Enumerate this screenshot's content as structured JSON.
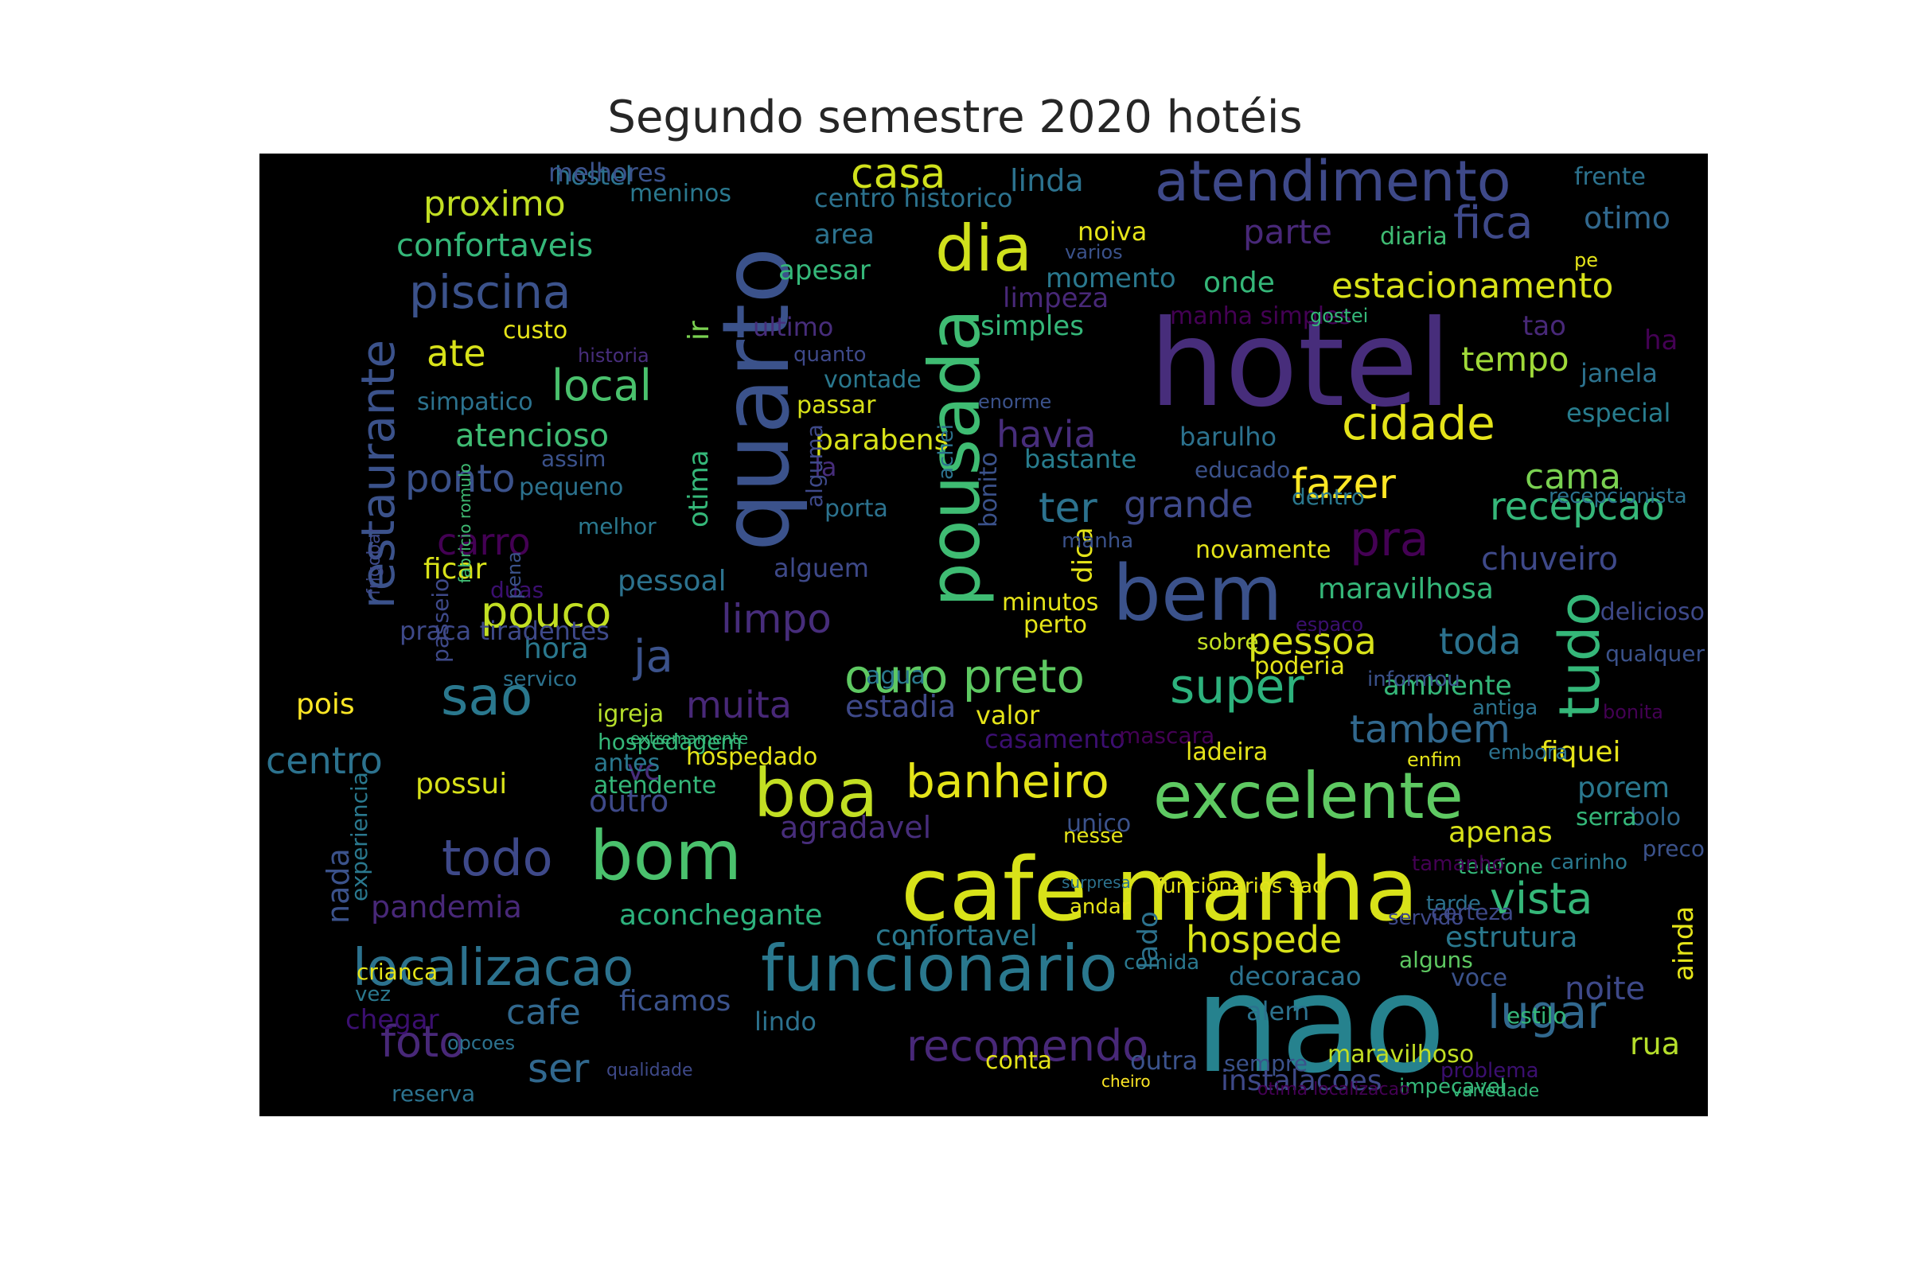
{
  "title": "Segundo semestre 2020 hotéis",
  "colormap": "viridis",
  "background_color": "#000000",
  "words": [
    {
      "text": "nao",
      "color": "#26828e"
    },
    {
      "text": "hotel",
      "color": "#472d7b"
    },
    {
      "text": "cafe manha",
      "color": "#d8e219"
    },
    {
      "text": "quarto",
      "color": "#3b528b"
    },
    {
      "text": "excelente",
      "color": "#5ec962"
    },
    {
      "text": "bom",
      "color": "#4ac16d"
    },
    {
      "text": "bem",
      "color": "#3b528b"
    },
    {
      "text": "boa",
      "color": "#c2df23"
    },
    {
      "text": "funcionario",
      "color": "#2a788e"
    },
    {
      "text": "pousada",
      "color": "#3fbc73"
    },
    {
      "text": "dia",
      "color": "#d0e11c"
    },
    {
      "text": "atendimento",
      "color": "#3e4989"
    },
    {
      "text": "localizacao",
      "color": "#2c728e"
    },
    {
      "text": "banheiro",
      "color": "#e5e419"
    },
    {
      "text": "restaurante",
      "color": "#3b528b"
    },
    {
      "text": "ouro preto",
      "color": "#5ec962"
    },
    {
      "text": "super",
      "color": "#2db27d"
    },
    {
      "text": "tudo",
      "color": "#35b779"
    },
    {
      "text": "cidade",
      "color": "#e5e419"
    },
    {
      "text": "piscina",
      "color": "#3b528b"
    },
    {
      "text": "todo",
      "color": "#3e4989"
    },
    {
      "text": "sao",
      "color": "#2a788e"
    },
    {
      "text": "recomendo",
      "color": "#482878"
    },
    {
      "text": "lugar",
      "color": "#31688e"
    },
    {
      "text": "vista",
      "color": "#35b779"
    },
    {
      "text": "pra",
      "color": "#440154"
    },
    {
      "text": "fica",
      "color": "#3e4989"
    },
    {
      "text": "pouco",
      "color": "#c2df23"
    },
    {
      "text": "casa",
      "color": "#d0e11c"
    },
    {
      "text": "ja",
      "color": "#3b528b"
    },
    {
      "text": "muita",
      "color": "#482878"
    },
    {
      "text": "limpo",
      "color": "#472d7b"
    },
    {
      "text": "local",
      "color": "#4ac16d"
    },
    {
      "text": "ter",
      "color": "#2c728e"
    },
    {
      "text": "grande",
      "color": "#3e4989"
    },
    {
      "text": "fazer",
      "color": "#fde725"
    },
    {
      "text": "recepcao",
      "color": "#35b779"
    },
    {
      "text": "estacionamento",
      "color": "#d8e219"
    },
    {
      "text": "foto",
      "color": "#482878"
    },
    {
      "text": "ser",
      "color": "#31688e"
    },
    {
      "text": "cafe",
      "color": "#31688e"
    },
    {
      "text": "hospede",
      "color": "#d8e219"
    },
    {
      "text": "havia",
      "color": "#472d7b"
    },
    {
      "text": "ponto",
      "color": "#3b528b"
    },
    {
      "text": "carro",
      "color": "#440154"
    },
    {
      "text": "pessoa",
      "color": "#d8e219"
    },
    {
      "text": "toda",
      "color": "#2c728e"
    },
    {
      "text": "centro",
      "color": "#2c728e"
    },
    {
      "text": "tambem",
      "color": "#31688e"
    },
    {
      "text": "cama",
      "color": "#7ad151"
    },
    {
      "text": "parte",
      "color": "#482878"
    },
    {
      "text": "proximo",
      "color": "#c2df23"
    },
    {
      "text": "confortaveis",
      "color": "#35b779"
    },
    {
      "text": "ate",
      "color": "#d8e219"
    },
    {
      "text": "atencioso",
      "color": "#3fbc73"
    },
    {
      "text": "otimo",
      "color": "#31688e"
    },
    {
      "text": "tempo",
      "color": "#a0da39"
    },
    {
      "text": "chuveiro",
      "color": "#3e4989"
    },
    {
      "text": "estrutura",
      "color": "#2a788e"
    },
    {
      "text": "noite",
      "color": "#3e4989"
    },
    {
      "text": "rua",
      "color": "#b5de2b"
    },
    {
      "text": "nada",
      "color": "#3b528b"
    },
    {
      "text": "pandemia",
      "color": "#482878"
    },
    {
      "text": "estadia",
      "color": "#3e4989"
    },
    {
      "text": "agradavel",
      "color": "#472d7b"
    },
    {
      "text": "outro",
      "color": "#3e4989"
    },
    {
      "text": "ficamos",
      "color": "#3b528b"
    },
    {
      "text": "aconchegante",
      "color": "#2db27d"
    },
    {
      "text": "confortavel",
      "color": "#2a788e"
    },
    {
      "text": "hora",
      "color": "#2a788e"
    },
    {
      "text": "maravilhosa",
      "color": "#35b779"
    },
    {
      "text": "linda",
      "color": "#2c728e"
    },
    {
      "text": "onde",
      "color": "#35b779"
    },
    {
      "text": "apenas",
      "color": "#d8e219"
    },
    {
      "text": "ambiente",
      "color": "#35b779"
    },
    {
      "text": "possui",
      "color": "#d8e219"
    },
    {
      "text": "pois",
      "color": "#fde725"
    },
    {
      "text": "ficar",
      "color": "#d8e219"
    },
    {
      "text": "fiquei",
      "color": "#e5e419"
    },
    {
      "text": "porem",
      "color": "#2a788e"
    },
    {
      "text": "ainda",
      "color": "#e5e419"
    },
    {
      "text": "lado",
      "color": "#2c728e"
    },
    {
      "text": "dica",
      "color": "#e5e419"
    },
    {
      "text": "otima",
      "color": "#35b779"
    },
    {
      "text": "ir",
      "color": "#7ad151"
    },
    {
      "text": "area",
      "color": "#2c728e"
    },
    {
      "text": "apesar",
      "color": "#35b779"
    },
    {
      "text": "simples",
      "color": "#35b779"
    },
    {
      "text": "momento",
      "color": "#2a788e"
    },
    {
      "text": "barulho",
      "color": "#2c728e"
    },
    {
      "text": "bastante",
      "color": "#287d8e"
    },
    {
      "text": "limpeza",
      "color": "#482878"
    },
    {
      "text": "tao",
      "color": "#482878"
    },
    {
      "text": "ha",
      "color": "#440154"
    },
    {
      "text": "janela",
      "color": "#2c728e"
    },
    {
      "text": "especial",
      "color": "#287d8e"
    },
    {
      "text": "casamento",
      "color": "#3b0f70"
    },
    {
      "text": "centro historico",
      "color": "#2c728e"
    },
    {
      "text": "hostel",
      "color": "#2c728e"
    },
    {
      "text": "melhores",
      "color": "#3b528b"
    },
    {
      "text": "meninos",
      "color": "#2a788e"
    },
    {
      "text": "frente",
      "color": "#2c728e"
    },
    {
      "text": "diaria",
      "color": "#3fbc73"
    },
    {
      "text": "pe",
      "color": "#e5e419"
    },
    {
      "text": "noiva",
      "color": "#e5e419"
    },
    {
      "text": "varios",
      "color": "#3b528b"
    },
    {
      "text": "manha simples",
      "color": "#440154"
    },
    {
      "text": "gostei",
      "color": "#35b779"
    },
    {
      "text": "ultimo",
      "color": "#472d7b"
    },
    {
      "text": "quanto",
      "color": "#3e4989"
    },
    {
      "text": "vontade",
      "color": "#2a788e"
    },
    {
      "text": "passar",
      "color": "#d8e219"
    },
    {
      "text": "enorme",
      "color": "#3b528b"
    },
    {
      "text": "historia",
      "color": "#472d7b"
    },
    {
      "text": "custo",
      "color": "#e5e419"
    },
    {
      "text": "simpatico",
      "color": "#2c728e"
    },
    {
      "text": "assim",
      "color": "#3b528b"
    },
    {
      "text": "pequeno",
      "color": "#2c728e"
    },
    {
      "text": "melhor",
      "color": "#2a788e"
    },
    {
      "text": "parabens",
      "color": "#d8e219"
    },
    {
      "text": "la",
      "color": "#472d7b"
    },
    {
      "text": "porta",
      "color": "#2c728e"
    },
    {
      "text": "alguma",
      "color": "#3e4989"
    },
    {
      "text": "achei",
      "color": "#2c728e"
    },
    {
      "text": "bonito",
      "color": "#3b528b"
    },
    {
      "text": "educado",
      "color": "#3b528b"
    },
    {
      "text": "dentro",
      "color": "#2a788e"
    },
    {
      "text": "recepcionista",
      "color": "#2c728e"
    },
    {
      "text": "manha",
      "color": "#3b528b"
    },
    {
      "text": "novamente",
      "color": "#e5e419"
    },
    {
      "text": "alguem",
      "color": "#3e4989"
    },
    {
      "text": "pessoal",
      "color": "#2c728e"
    },
    {
      "text": "duas",
      "color": "#3b0f70"
    },
    {
      "text": "minutos",
      "color": "#e5e419"
    },
    {
      "text": "perto",
      "color": "#e5e419"
    },
    {
      "text": "espaco",
      "color": "#3b0f70"
    },
    {
      "text": "delicioso",
      "color": "#3e4989"
    },
    {
      "text": "sobre",
      "color": "#c2df23"
    },
    {
      "text": "agua",
      "color": "#2a788e"
    },
    {
      "text": "servico",
      "color": "#2c728e"
    },
    {
      "text": "poderia",
      "color": "#e5e419"
    },
    {
      "text": "informou",
      "color": "#3b528b"
    },
    {
      "text": "qualquer",
      "color": "#3b528b"
    },
    {
      "text": "igreja",
      "color": "#b5de2b"
    },
    {
      "text": "valor",
      "color": "#e5e419"
    },
    {
      "text": "antiga",
      "color": "#2c728e"
    },
    {
      "text": "bonita",
      "color": "#440154"
    },
    {
      "text": "hospedagem",
      "color": "#35b779"
    },
    {
      "text": "vc",
      "color": "#472d7b"
    },
    {
      "text": "extremamente",
      "color": "#35b779"
    },
    {
      "text": "hospedado",
      "color": "#e5e419"
    },
    {
      "text": "mascara",
      "color": "#440154"
    },
    {
      "text": "ladeira",
      "color": "#e5e419"
    },
    {
      "text": "antes",
      "color": "#2a788e"
    },
    {
      "text": "atendente",
      "color": "#35b779"
    },
    {
      "text": "enfim",
      "color": "#e5e419"
    },
    {
      "text": "embora",
      "color": "#2c728e"
    },
    {
      "text": "alem",
      "color": "#2c728e"
    },
    {
      "text": "voce",
      "color": "#3b528b"
    },
    {
      "text": "estilo",
      "color": "#35b779"
    },
    {
      "text": "unico",
      "color": "#3b528b"
    },
    {
      "text": "nesse",
      "color": "#e5e419"
    },
    {
      "text": "bolo",
      "color": "#31688e"
    },
    {
      "text": "serra",
      "color": "#35b779"
    },
    {
      "text": "preco",
      "color": "#3b528b"
    },
    {
      "text": "telefone",
      "color": "#35b779"
    },
    {
      "text": "carinho",
      "color": "#2a788e"
    },
    {
      "text": "tamanho",
      "color": "#440154"
    },
    {
      "text": "tarde",
      "color": "#2c728e"
    },
    {
      "text": "servido",
      "color": "#3e4989"
    },
    {
      "text": "andar",
      "color": "#e5e419"
    },
    {
      "text": "surpresa",
      "color": "#2c728e"
    },
    {
      "text": "funcionarios sao",
      "color": "#e5e419"
    },
    {
      "text": "comida",
      "color": "#2a788e"
    },
    {
      "text": "decoracao",
      "color": "#2c728e"
    },
    {
      "text": "alguns",
      "color": "#5ec962"
    },
    {
      "text": "certeza",
      "color": "#3e4989"
    },
    {
      "text": "problema",
      "color": "#3b0f70"
    },
    {
      "text": "impecavel",
      "color": "#35b779"
    },
    {
      "text": "variedade",
      "color": "#35b779"
    },
    {
      "text": "instalacoes",
      "color": "#3e4989"
    },
    {
      "text": "outra",
      "color": "#3b528b"
    },
    {
      "text": "cheiro",
      "color": "#fde725"
    },
    {
      "text": "otima localizacao",
      "color": "#440154"
    },
    {
      "text": "sempre",
      "color": "#3b528b"
    },
    {
      "text": "conta",
      "color": "#e5e419"
    },
    {
      "text": "maravilhoso",
      "color": "#c2df23"
    },
    {
      "text": "lindo",
      "color": "#2c728e"
    },
    {
      "text": "qualidade",
      "color": "#3e4989"
    },
    {
      "text": "opcoes",
      "color": "#2c728e"
    },
    {
      "text": "reserva",
      "color": "#2c728e"
    },
    {
      "text": "chegar",
      "color": "#3b0f70"
    },
    {
      "text": "vez",
      "color": "#2a788e"
    },
    {
      "text": "crianca",
      "color": "#e5e419"
    },
    {
      "text": "experiencia",
      "color": "#2a788e"
    },
    {
      "text": "praca tiradentes",
      "color": "#3e4989"
    },
    {
      "text": "passeio",
      "color": "#3e4989"
    },
    {
      "text": "pena",
      "color": "#3b528b"
    },
    {
      "text": "fabricio romulo",
      "color": "#3fbc73"
    },
    {
      "text": "frigobar",
      "color": "#3e4989"
    }
  ]
}
